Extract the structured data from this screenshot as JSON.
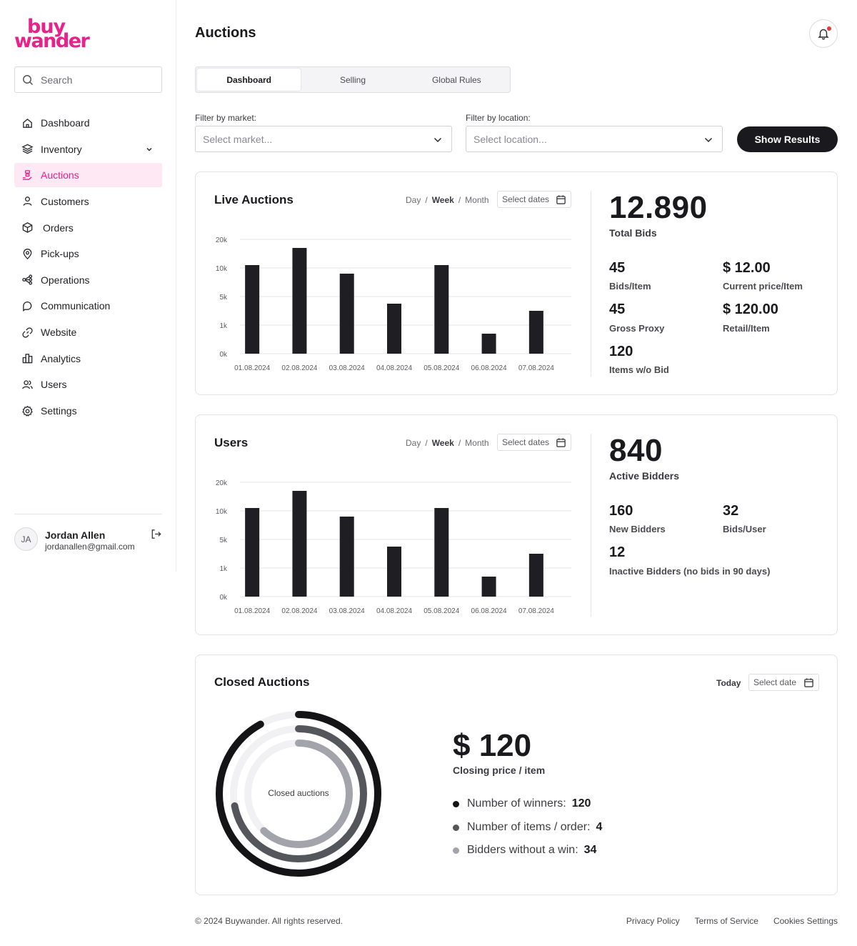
{
  "brand": {
    "logo_top": "buy",
    "logo_bottom": "wander",
    "color": "#e8228a"
  },
  "sidebar": {
    "search_placeholder": "Search",
    "items": [
      {
        "label": "Dashboard",
        "icon": "home-icon"
      },
      {
        "label": "Inventory",
        "icon": "layers-icon",
        "has_submenu": true
      },
      {
        "label": "Auctions",
        "icon": "auction-icon",
        "active": true
      },
      {
        "label": "Customers",
        "icon": "user-icon"
      },
      {
        "label": "Orders",
        "icon": "box-icon"
      },
      {
        "label": "Pick-ups",
        "icon": "map-pin-icon"
      },
      {
        "label": "Operations",
        "icon": "workflow-icon"
      },
      {
        "label": "Communication",
        "icon": "chat-icon"
      },
      {
        "label": "Website",
        "icon": "link-icon"
      },
      {
        "label": "Analytics",
        "icon": "bar-chart-icon"
      },
      {
        "label": "Users",
        "icon": "users-icon"
      },
      {
        "label": "Settings",
        "icon": "gear-icon"
      }
    ],
    "profile": {
      "initials": "JA",
      "name": "Jordan Allen",
      "email": "jordanallen@gmail.com"
    }
  },
  "header": {
    "title": "Auctions",
    "notification_dot": true
  },
  "tabs": [
    {
      "label": "Dashboard",
      "active": true
    },
    {
      "label": "Selling",
      "active": false
    },
    {
      "label": "Global Rules",
      "active": false
    }
  ],
  "filters": {
    "market_label": "Filter by market:",
    "market_placeholder": "Select market...",
    "location_label": "Filter by location:",
    "location_placeholder": "Select location...",
    "show_results": "Show Results"
  },
  "period_options": {
    "day": "Day",
    "week": "Week",
    "month": "Month",
    "separator": "/",
    "selected": "Week",
    "select_dates": "Select dates"
  },
  "live_auctions": {
    "title": "Live Auctions",
    "total_bids": "12.890",
    "total_bids_label": "Total Bids",
    "stats": [
      {
        "value": "45",
        "label": "Bids/Item"
      },
      {
        "value": "$ 12.00",
        "label": "Current price/Item"
      },
      {
        "value": "45",
        "label": "Gross Proxy"
      },
      {
        "value": "$ 120.00",
        "label": "Retail/Item"
      },
      {
        "value": "120",
        "label": "Items w/o Bid"
      }
    ]
  },
  "users_card": {
    "title": "Users",
    "active_bidders": "840",
    "active_bidders_label": "Active Bidders",
    "stats": [
      {
        "value": "160",
        "label": "New Bidders"
      },
      {
        "value": "32",
        "label": "Bids/User"
      },
      {
        "value": "12",
        "label": "Inactive Bidders (no bids in 90 days)"
      }
    ]
  },
  "chart_data": [
    {
      "type": "bar",
      "categories": [
        "01.08.2024",
        "02.08.2024",
        "03.08.2024",
        "04.08.2024",
        "05.08.2024",
        "06.08.2024",
        "07.08.2024"
      ],
      "values": [
        11000,
        17000,
        9000,
        4000,
        11000,
        700,
        3000
      ],
      "y_ticks": [
        "20k",
        "10k",
        "5k",
        "1k",
        "0k"
      ],
      "y_tick_values": [
        20000,
        10000,
        5000,
        1000,
        0
      ],
      "scale": "piecewise",
      "grid": true,
      "color": "#1f1f23"
    },
    {
      "type": "bar",
      "categories": [
        "01.08.2024",
        "02.08.2024",
        "03.08.2024",
        "04.08.2024",
        "05.08.2024",
        "06.08.2024",
        "07.08.2024"
      ],
      "values": [
        11000,
        17000,
        9000,
        4000,
        11000,
        700,
        3000
      ],
      "y_ticks": [
        "20k",
        "10k",
        "5k",
        "1k",
        "0k"
      ],
      "y_tick_values": [
        20000,
        10000,
        5000,
        1000,
        0
      ],
      "scale": "piecewise",
      "grid": true,
      "color": "#1f1f23"
    }
  ],
  "closed_auctions": {
    "title": "Closed Auctions",
    "today": "Today",
    "select_date": "Select date",
    "donut_center": "Closed auctions",
    "closing_price": "$ 120",
    "closing_price_label": "Closing price / item",
    "legend": [
      {
        "label": "Number of winners:",
        "value": "120",
        "color": "#141416",
        "fraction": 0.92
      },
      {
        "label": "Number of items / order:",
        "value": "4",
        "color": "#55555c",
        "fraction": 0.72
      },
      {
        "label": "Bidders without a win:",
        "value": "34",
        "color": "#a3a3ab",
        "fraction": 0.62
      }
    ]
  },
  "footer": {
    "copyright": "© 2024 Buywander. All rights reserved.",
    "links": [
      "Privacy Policy",
      "Terms of Service",
      "Cookies Settings"
    ]
  }
}
